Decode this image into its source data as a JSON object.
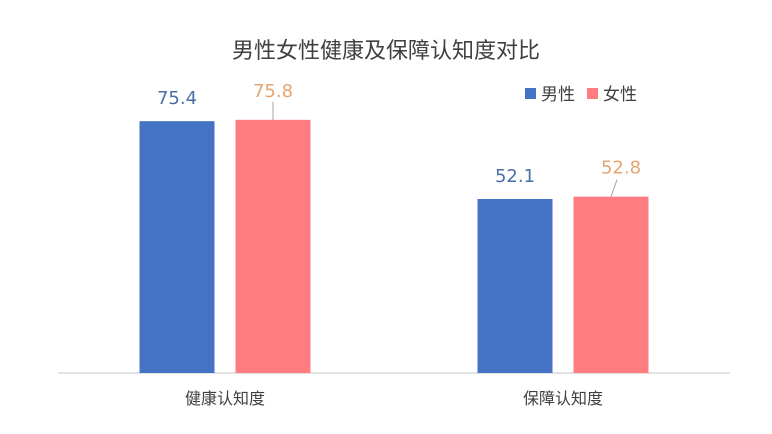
{
  "chart_data": {
    "type": "bar",
    "title": "男性女性健康及保障认知度对比",
    "categories": [
      "健康认知度",
      "保障认知度"
    ],
    "series": [
      {
        "name": "男性",
        "values": [
          75.4,
          52.1
        ],
        "color": "#4472C4",
        "label_color": "#4A6FA5"
      },
      {
        "name": "女性",
        "values": [
          75.8,
          52.8
        ],
        "color": "#FF7C80",
        "label_color": "#E6A46E"
      }
    ],
    "ylim": [
      0,
      100
    ],
    "grid": false,
    "legend": "top-right",
    "axis_color": "#D9D9D9",
    "text_color": "#404040",
    "title_color": "#404040"
  }
}
